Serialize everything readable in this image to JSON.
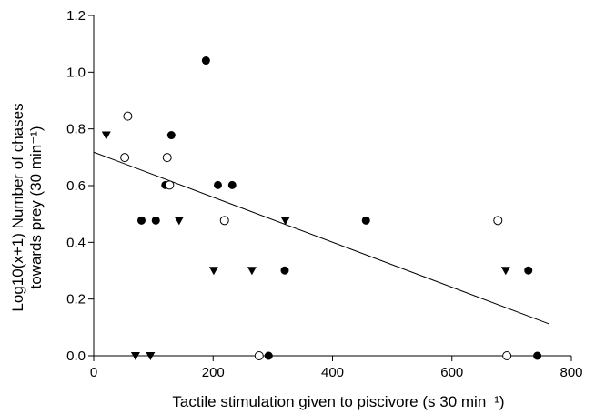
{
  "chart_data": {
    "type": "scatter",
    "title": "",
    "xlabel": "Tactile stimulation given to piscivore (s 30 min⁻¹)",
    "ylabel_line1": "Log10(x+1) Number of chases",
    "ylabel_line2": "towards prey (30 min⁻¹)",
    "xlim": [
      0,
      800
    ],
    "ylim": [
      0,
      1.2
    ],
    "xticks": [
      0,
      200,
      400,
      600,
      800
    ],
    "yticks": [
      0.0,
      0.2,
      0.4,
      0.6,
      0.8,
      1.0,
      1.2
    ],
    "xtick_labels": [
      "0",
      "200",
      "400",
      "600",
      "800"
    ],
    "ytick_labels": [
      "0.0",
      "0.2",
      "0.4",
      "0.6",
      "0.8",
      "1.0",
      "1.2"
    ],
    "series": [
      {
        "marker": "filled-circle",
        "x": [
          80,
          104,
          120,
          130,
          188,
          208,
          232,
          293,
          320,
          456,
          728,
          743
        ],
        "y": [
          0.477,
          0.477,
          0.602,
          0.778,
          1.041,
          0.602,
          0.602,
          0.0,
          0.301,
          0.477,
          0.301,
          0.0
        ]
      },
      {
        "marker": "open-circle",
        "x": [
          52,
          57,
          123,
          127,
          219,
          277,
          677,
          692
        ],
        "y": [
          0.699,
          0.845,
          0.699,
          0.602,
          0.477,
          0.0,
          0.477,
          0.0
        ]
      },
      {
        "marker": "filled-triangle-down",
        "x": [
          21,
          70,
          95,
          143,
          201,
          265,
          321,
          690
        ],
        "y": [
          0.778,
          0.0,
          0.0,
          0.477,
          0.301,
          0.301,
          0.477,
          0.301
        ]
      }
    ],
    "regression_line": {
      "x": [
        0,
        762
      ],
      "y": [
        0.718,
        0.113
      ]
    },
    "grid": false,
    "legend": "none"
  }
}
